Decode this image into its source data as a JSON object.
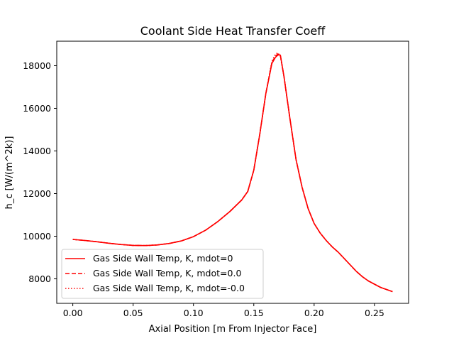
{
  "chart_data": {
    "type": "line",
    "title": "Coolant Side Heat Transfer Coeff",
    "xlabel": "Axial Position [m From Injector Face]",
    "ylabel": "h_c [W/(m^2k)]",
    "xlim": [
      -0.0133,
      0.2783
    ],
    "ylim": [
      6850,
      19150
    ],
    "xticks": [
      0.0,
      0.05,
      0.1,
      0.15,
      0.2,
      0.25
    ],
    "xtick_labels": [
      "0.00",
      "0.05",
      "0.10",
      "0.15",
      "0.20",
      "0.25"
    ],
    "yticks": [
      8000,
      10000,
      12000,
      14000,
      16000,
      18000
    ],
    "ytick_labels": [
      "8000",
      "10000",
      "12000",
      "14000",
      "16000",
      "18000"
    ],
    "grid": false,
    "legend": "lower-left",
    "series": [
      {
        "name": "Gas Side Wall Temp, K, mdot=0",
        "color": "#ff0000",
        "dash": "solid",
        "x": [
          0.0,
          0.01,
          0.02,
          0.03,
          0.04,
          0.05,
          0.06,
          0.07,
          0.08,
          0.09,
          0.1,
          0.11,
          0.12,
          0.13,
          0.14,
          0.145,
          0.15,
          0.155,
          0.16,
          0.165,
          0.168,
          0.17,
          0.172,
          0.175,
          0.18,
          0.185,
          0.19,
          0.195,
          0.2,
          0.205,
          0.21,
          0.215,
          0.22,
          0.225,
          0.23,
          0.235,
          0.24,
          0.245,
          0.25,
          0.255,
          0.26,
          0.265
        ],
        "y": [
          9850,
          9800,
          9740,
          9670,
          9610,
          9570,
          9560,
          9590,
          9660,
          9780,
          9980,
          10280,
          10680,
          11150,
          11700,
          12100,
          13100,
          14800,
          16700,
          18100,
          18400,
          18500,
          18500,
          17500,
          15500,
          13600,
          12300,
          11300,
          10600,
          10150,
          9800,
          9500,
          9250,
          8950,
          8650,
          8350,
          8100,
          7900,
          7750,
          7600,
          7500,
          7400
        ]
      },
      {
        "name": "Gas Side Wall Temp, K, mdot=0.0",
        "color": "#ff0000",
        "dash": "dashed",
        "x": [
          0.0,
          0.01,
          0.02,
          0.03,
          0.04,
          0.05,
          0.06,
          0.07,
          0.08,
          0.09,
          0.1,
          0.11,
          0.12,
          0.13,
          0.14,
          0.145,
          0.15,
          0.155,
          0.16,
          0.165,
          0.168,
          0.17,
          0.172,
          0.175,
          0.18,
          0.185,
          0.19,
          0.195,
          0.2,
          0.205,
          0.21,
          0.215,
          0.22,
          0.225,
          0.23,
          0.235,
          0.24,
          0.245,
          0.25,
          0.255,
          0.26,
          0.265
        ],
        "y": [
          9850,
          9800,
          9740,
          9670,
          9610,
          9570,
          9560,
          9590,
          9660,
          9780,
          9980,
          10280,
          10680,
          11150,
          11700,
          12100,
          13100,
          14800,
          16700,
          18150,
          18450,
          18550,
          18500,
          17500,
          15500,
          13600,
          12300,
          11300,
          10600,
          10150,
          9800,
          9500,
          9250,
          8950,
          8650,
          8350,
          8100,
          7900,
          7750,
          7600,
          7500,
          7400
        ]
      },
      {
        "name": "Gas Side Wall Temp, K, mdot=-0.0",
        "color": "#ff0000",
        "dash": "dotted",
        "x": [
          0.0,
          0.01,
          0.02,
          0.03,
          0.04,
          0.05,
          0.06,
          0.07,
          0.08,
          0.09,
          0.1,
          0.11,
          0.12,
          0.13,
          0.14,
          0.145,
          0.15,
          0.155,
          0.16,
          0.165,
          0.168,
          0.17,
          0.172,
          0.175,
          0.18,
          0.185,
          0.19,
          0.195,
          0.2,
          0.205,
          0.21,
          0.215,
          0.22,
          0.225,
          0.23,
          0.235,
          0.24,
          0.245,
          0.25,
          0.255,
          0.26,
          0.265
        ],
        "y": [
          9850,
          9800,
          9740,
          9670,
          9610,
          9570,
          9560,
          9590,
          9660,
          9780,
          9980,
          10280,
          10680,
          11150,
          11700,
          12100,
          13100,
          14800,
          16700,
          18200,
          18550,
          18600,
          18450,
          17500,
          15500,
          13600,
          12300,
          11300,
          10600,
          10150,
          9800,
          9500,
          9250,
          8950,
          8650,
          8350,
          8100,
          7900,
          7750,
          7600,
          7500,
          7400
        ]
      }
    ]
  }
}
